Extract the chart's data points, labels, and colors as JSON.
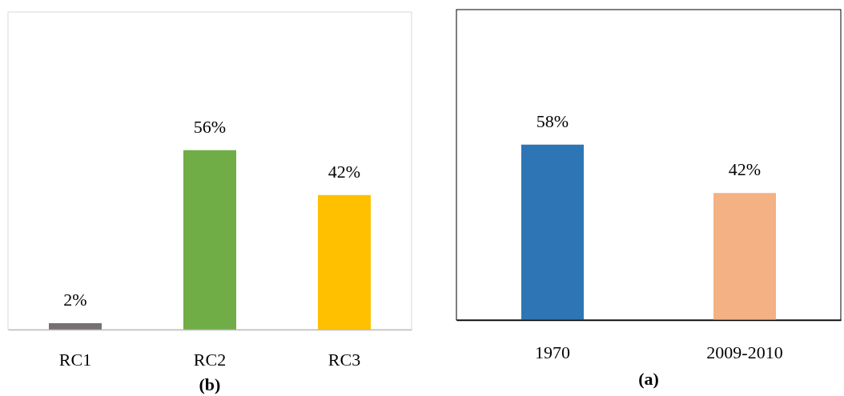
{
  "chart_data": [
    {
      "type": "bar",
      "title": "(b)",
      "categories": [
        "RC1",
        "RC2",
        "RC3"
      ],
      "values": [
        2,
        56,
        42
      ],
      "colors": [
        "#767171",
        "#70ad47",
        "#ffc000"
      ],
      "value_labels": [
        "2%",
        "56%",
        "42%"
      ],
      "tick_labels": "x"
    },
    {
      "type": "bar",
      "title": "(a)",
      "categories": [
        "1970",
        "2009-2010"
      ],
      "values": [
        58,
        42
      ],
      "colors": [
        "#2e75b6",
        "#f4b183"
      ],
      "value_labels": [
        "58%",
        "42%"
      ],
      "tick_labels": "x"
    }
  ]
}
